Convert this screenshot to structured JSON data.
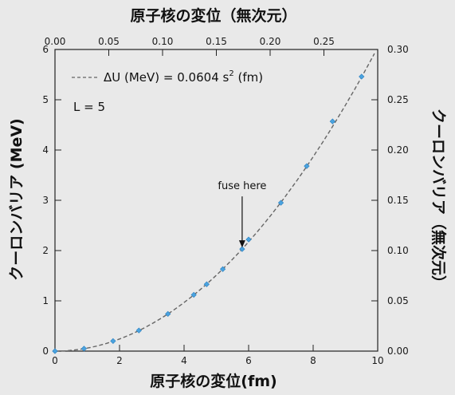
{
  "chart_data": {
    "type": "line",
    "top_title": "原子核の変位（無次元）",
    "xlabel": "原子核の変位(fm)",
    "ylabel_left": "クーロンバリア (MeV)",
    "ylabel_right": "クーロンバリア（無次元）",
    "x_range": [
      0,
      10
    ],
    "y_range": [
      0,
      6
    ],
    "x_ticks": [
      "0",
      "2",
      "4",
      "6",
      "8",
      "10"
    ],
    "y_ticks": [
      "0",
      "1",
      "2",
      "3",
      "4",
      "5",
      "6"
    ],
    "top_range": [
      0,
      0.3
    ],
    "top_ticks": [
      "0.00",
      "0.05",
      "0.10",
      "0.15",
      "0.20",
      "0.25"
    ],
    "right_range": [
      0,
      0.3
    ],
    "right_ticks": [
      "0.00",
      "0.05",
      "0.10",
      "0.15",
      "0.20",
      "0.25",
      "0.30"
    ],
    "fit": {
      "legend_prefix": "ΔU (MeV) = 0.0604 s",
      "legend_sup": "2",
      "legend_suffix": " (fm)",
      "coefficient": 0.0604
    },
    "legend_line2": "L = 5",
    "annotation": {
      "text": "fuse here",
      "x": 5.8,
      "y": 2.03
    },
    "series": [
      {
        "x": [
          0.0,
          0.9,
          1.8,
          2.6,
          3.5,
          4.3,
          4.7,
          5.2,
          5.8,
          6.0,
          7.0,
          7.8,
          8.6,
          9.5
        ],
        "y": [
          0.0,
          0.05,
          0.2,
          0.41,
          0.74,
          1.12,
          1.33,
          1.63,
          2.03,
          2.22,
          2.95,
          3.68,
          4.57,
          5.46
        ]
      }
    ],
    "grid": false,
    "legend_position": "top-left",
    "colors": {
      "points": "#4aa3df",
      "line": "#666666",
      "axes": "#222222"
    }
  }
}
